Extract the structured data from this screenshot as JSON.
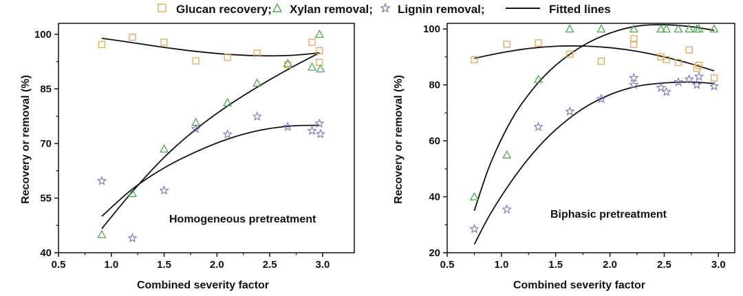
{
  "legend": {
    "items": [
      {
        "label": "Glucan recovery;",
        "marker": "square",
        "color": "#E8A650"
      },
      {
        "label": "Xylan removal;",
        "marker": "triangle",
        "color": "#4FA84F"
      },
      {
        "label": "Lignin removal;",
        "marker": "star",
        "color": "#7B70B8"
      },
      {
        "label": "Fitted lines",
        "marker": "line",
        "color": "#111111"
      }
    ]
  },
  "chart_data": [
    {
      "type": "scatter",
      "annotation": "Homogeneous pretreatment",
      "xlabel": "Combined severity factor",
      "ylabel": "Recovery or removal (%)",
      "xlim": [
        0.5,
        3.3
      ],
      "ylim": [
        40,
        103
      ],
      "xticks": [
        "0.5",
        "1.0",
        "1.5",
        "2.0",
        "2.5",
        "3.0"
      ],
      "yticks": [
        "40",
        "55",
        "70",
        "85",
        "100"
      ],
      "series": [
        {
          "name": "Glucan recovery",
          "marker": "square",
          "color": "#E8A650",
          "x": [
            0.91,
            1.2,
            1.5,
            1.8,
            2.1,
            2.38,
            2.67,
            2.9,
            2.97,
            2.97
          ],
          "y": [
            97.2,
            99.2,
            97.8,
            92.7,
            93.7,
            94.8,
            91.6,
            97.8,
            95.5,
            92.3
          ]
        },
        {
          "name": "Xylan removal",
          "marker": "triangle",
          "color": "#4FA84F",
          "x": [
            0.91,
            1.2,
            1.5,
            1.8,
            2.1,
            2.38,
            2.67,
            2.9,
            2.97,
            2.98
          ],
          "y": [
            45.0,
            56.3,
            68.5,
            75.8,
            81.2,
            86.6,
            92.0,
            91.0,
            100.0,
            90.5
          ]
        },
        {
          "name": "Lignin removal",
          "marker": "star",
          "color": "#7B70B8",
          "x": [
            0.91,
            1.2,
            1.5,
            1.8,
            2.1,
            2.38,
            2.67,
            2.9,
            2.97,
            2.98
          ],
          "y": [
            59.7,
            44.0,
            57.1,
            74.0,
            72.5,
            77.4,
            74.6,
            73.5,
            75.5,
            72.6
          ]
        }
      ],
      "fitted_lines": [
        {
          "name": "Glucan fit",
          "x": [
            0.91,
            1.2,
            1.5,
            1.8,
            2.1,
            2.4,
            2.7,
            2.97
          ],
          "y": [
            98.9,
            97.7,
            96.4,
            95.3,
            94.5,
            94.1,
            94.2,
            94.9
          ]
        },
        {
          "name": "Xylan fit",
          "x": [
            0.91,
            1.2,
            1.5,
            1.8,
            2.1,
            2.4,
            2.7,
            2.97
          ],
          "y": [
            46.6,
            56.8,
            66.2,
            73.9,
            80.3,
            85.8,
            90.8,
            94.9
          ]
        },
        {
          "name": "Lignin fit",
          "x": [
            0.91,
            1.2,
            1.5,
            1.8,
            2.1,
            2.4,
            2.7,
            2.97
          ],
          "y": [
            50.0,
            57.5,
            63.3,
            67.7,
            71.2,
            73.6,
            74.8,
            75.0
          ]
        }
      ]
    },
    {
      "type": "scatter",
      "annotation": "Biphasic pretreatment",
      "xlabel": "Combined severity factor",
      "ylabel": "Recovery or removal (%)",
      "xlim": [
        0.5,
        3.15
      ],
      "ylim": [
        20,
        102
      ],
      "xticks": [
        "0.5",
        "1.0",
        "1.5",
        "2.0",
        "2.5",
        "3.0"
      ],
      "yticks": [
        "20",
        "40",
        "60",
        "80",
        "100"
      ],
      "series": [
        {
          "name": "Glucan recovery",
          "marker": "square",
          "color": "#E8A650",
          "x": [
            0.75,
            1.05,
            1.34,
            1.63,
            1.92,
            2.22,
            2.22,
            2.47,
            2.52,
            2.63,
            2.73,
            2.8,
            2.82,
            2.96
          ],
          "y": [
            89.0,
            94.5,
            95.0,
            91.0,
            88.5,
            96.5,
            94.5,
            90.0,
            89.0,
            88.0,
            92.5,
            86.0,
            87.0,
            82.5
          ]
        },
        {
          "name": "Xylan removal",
          "marker": "triangle",
          "color": "#4FA84F",
          "x": [
            0.75,
            1.05,
            1.34,
            1.63,
            1.92,
            2.22,
            2.47,
            2.52,
            2.63,
            2.73,
            2.8,
            2.82,
            2.96
          ],
          "y": [
            40.0,
            55.0,
            82.0,
            100.0,
            100.0,
            100.0,
            100.0,
            100.0,
            100.0,
            100.0,
            100.0,
            100.0,
            100.0
          ]
        },
        {
          "name": "Lignin removal",
          "marker": "star",
          "color": "#7B70B8",
          "x": [
            0.75,
            1.05,
            1.34,
            1.63,
            1.92,
            2.22,
            2.22,
            2.47,
            2.52,
            2.63,
            2.73,
            2.8,
            2.82,
            2.96
          ],
          "y": [
            28.5,
            35.5,
            65.0,
            70.5,
            75.0,
            82.5,
            80.0,
            79.0,
            77.5,
            81.0,
            82.0,
            80.0,
            83.0,
            79.5
          ]
        }
      ],
      "fitted_lines": [
        {
          "name": "Glucan fit",
          "x": [
            0.75,
            1.0,
            1.25,
            1.5,
            1.75,
            2.0,
            2.25,
            2.5,
            2.75,
            2.96
          ],
          "y": [
            89.5,
            91.5,
            93.0,
            93.8,
            93.9,
            93.3,
            92.0,
            90.0,
            87.5,
            85.0
          ]
        },
        {
          "name": "Xylan fit",
          "x": [
            0.75,
            0.9,
            1.1,
            1.3,
            1.5,
            1.75,
            2.0,
            2.25,
            2.5,
            2.75,
            2.96
          ],
          "y": [
            35.0,
            52.0,
            68.0,
            79.0,
            87.0,
            94.0,
            98.5,
            101.0,
            101.5,
            100.8,
            99.5
          ]
        },
        {
          "name": "Lignin fit",
          "x": [
            0.75,
            0.9,
            1.1,
            1.3,
            1.5,
            1.75,
            2.0,
            2.25,
            2.5,
            2.75,
            2.96
          ],
          "y": [
            23.0,
            34.0,
            46.0,
            56.0,
            64.0,
            71.5,
            76.5,
            79.5,
            80.7,
            81.0,
            80.5
          ]
        }
      ]
    }
  ]
}
